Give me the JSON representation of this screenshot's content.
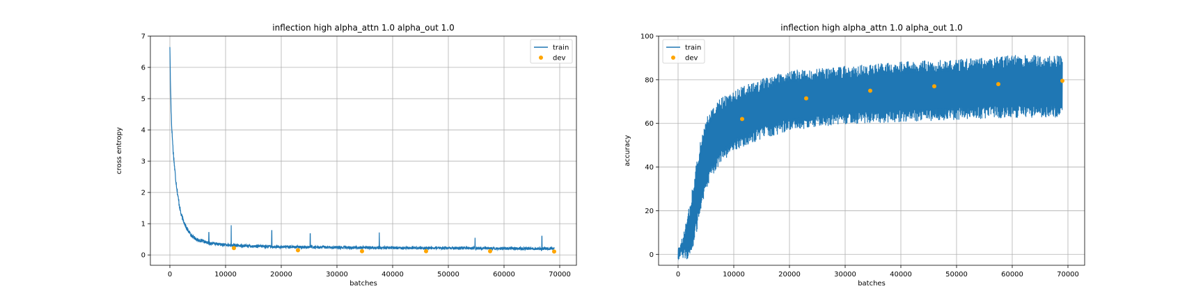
{
  "chart_data": [
    {
      "type": "line",
      "title": "inflection high alpha_attn 1.0 alpha_out 1.0",
      "xlabel": "batches",
      "ylabel": "cross entropy",
      "xlim": [
        -3500,
        73000
      ],
      "ylim": [
        -0.33,
        7.0
      ],
      "xticks": [
        0,
        10000,
        20000,
        30000,
        40000,
        50000,
        60000,
        70000
      ],
      "yticks": [
        0,
        1,
        2,
        3,
        4,
        5,
        6,
        7
      ],
      "grid": true,
      "legend": "top-right",
      "series": [
        {
          "name": "train",
          "kind": "line",
          "color": "#1f77b4",
          "x_range": [
            0,
            69000
          ],
          "curve": [
            [
              0,
              6.7
            ],
            [
              100,
              5.5
            ],
            [
              300,
              4.2
            ],
            [
              600,
              3.3
            ],
            [
              1000,
              2.5
            ],
            [
              1500,
              1.8
            ],
            [
              2000,
              1.3
            ],
            [
              3000,
              0.85
            ],
            [
              4000,
              0.6
            ],
            [
              5000,
              0.48
            ],
            [
              7000,
              0.38
            ],
            [
              10000,
              0.32
            ],
            [
              15000,
              0.28
            ],
            [
              20000,
              0.26
            ],
            [
              30000,
              0.24
            ],
            [
              40000,
              0.23
            ],
            [
              50000,
              0.22
            ],
            [
              60000,
              0.21
            ],
            [
              69000,
              0.2
            ]
          ],
          "noise": 0.1,
          "spikes": [
            [
              7000,
              0.72
            ],
            [
              11000,
              0.95
            ],
            [
              18300,
              0.78
            ],
            [
              25200,
              0.68
            ],
            [
              37600,
              0.72
            ],
            [
              54800,
              0.55
            ],
            [
              66800,
              0.6
            ]
          ]
        },
        {
          "name": "dev",
          "kind": "scatter",
          "color": "#ffa500",
          "x": [
            11500,
            23000,
            34500,
            46000,
            57500,
            69000
          ],
          "y": [
            0.22,
            0.15,
            0.12,
            0.12,
            0.12,
            0.11
          ]
        }
      ]
    },
    {
      "type": "line",
      "title": "inflection high alpha_attn 1.0 alpha_out 1.0",
      "xlabel": "batches",
      "ylabel": "accuracy",
      "xlim": [
        -3500,
        73000
      ],
      "ylim": [
        -5,
        100
      ],
      "xticks": [
        0,
        10000,
        20000,
        30000,
        40000,
        50000,
        60000,
        70000
      ],
      "yticks": [
        0,
        20,
        40,
        60,
        80,
        100
      ],
      "grid": true,
      "legend": "top-left",
      "series": [
        {
          "name": "train",
          "kind": "band",
          "color": "#1f77b4",
          "x_range": [
            0,
            69000
          ],
          "upper": [
            [
              0,
              0
            ],
            [
              1000,
              8
            ],
            [
              2000,
              20
            ],
            [
              3000,
              35
            ],
            [
              4000,
              50
            ],
            [
              5000,
              60
            ],
            [
              7000,
              68
            ],
            [
              10000,
              73
            ],
            [
              15000,
              78
            ],
            [
              20000,
              82
            ],
            [
              30000,
              84
            ],
            [
              40000,
              86
            ],
            [
              50000,
              87
            ],
            [
              60000,
              89
            ],
            [
              69000,
              89
            ]
          ],
          "lower": [
            [
              0,
              0
            ],
            [
              1000,
              0
            ],
            [
              2000,
              0
            ],
            [
              3000,
              8
            ],
            [
              4000,
              22
            ],
            [
              5000,
              32
            ],
            [
              7000,
              42
            ],
            [
              10000,
              50
            ],
            [
              15000,
              55
            ],
            [
              20000,
              59
            ],
            [
              30000,
              62
            ],
            [
              40000,
              63
            ],
            [
              50000,
              64
            ],
            [
              60000,
              65
            ],
            [
              69000,
              65
            ]
          ],
          "noise": 3
        },
        {
          "name": "dev",
          "kind": "scatter",
          "color": "#ffa500",
          "x": [
            11500,
            23000,
            34500,
            46000,
            57500,
            69000
          ],
          "y": [
            62,
            71.5,
            75,
            77,
            78,
            79.5
          ]
        }
      ]
    }
  ]
}
